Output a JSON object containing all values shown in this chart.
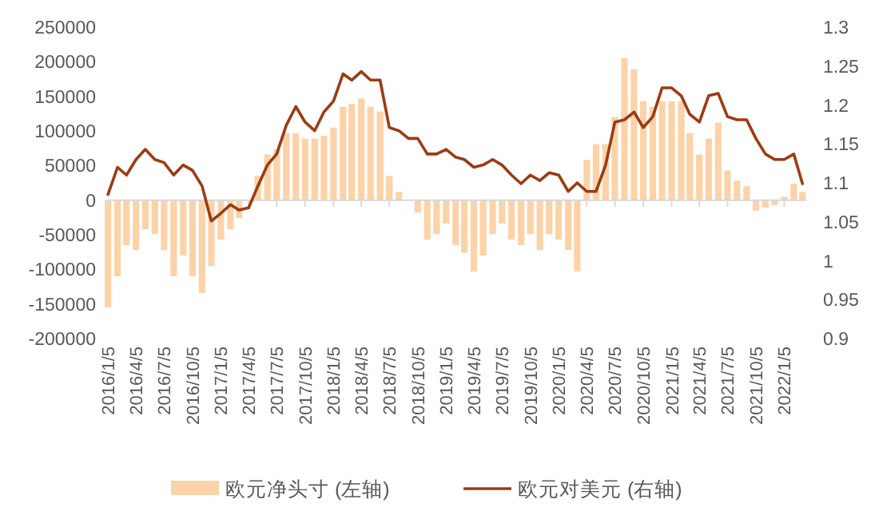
{
  "chart_data": {
    "type": "bar",
    "legend": "bottom",
    "x": [
      "2016-01-05",
      "2016-02-05",
      "2016-03-05",
      "2016-04-05",
      "2016-05-05",
      "2016-06-05",
      "2016-07-05",
      "2016-08-05",
      "2016-09-05",
      "2016-10-05",
      "2016-11-05",
      "2016-12-05",
      "2017-01-05",
      "2017-02-05",
      "2017-03-05",
      "2017-04-05",
      "2017-05-05",
      "2017-06-05",
      "2017-07-05",
      "2017-08-05",
      "2017-09-05",
      "2017-10-05",
      "2017-11-05",
      "2017-12-05",
      "2018-01-05",
      "2018-02-05",
      "2018-03-05",
      "2018-04-05",
      "2018-05-05",
      "2018-06-05",
      "2018-07-05",
      "2018-08-05",
      "2018-09-05",
      "2018-10-05",
      "2018-11-05",
      "2018-12-05",
      "2019-01-05",
      "2019-02-05",
      "2019-03-05",
      "2019-04-05",
      "2019-05-05",
      "2019-06-05",
      "2019-07-05",
      "2019-08-05",
      "2019-09-05",
      "2019-10-05",
      "2019-11-05",
      "2019-12-05",
      "2020-01-05",
      "2020-02-05",
      "2020-03-05",
      "2020-04-05",
      "2020-05-05",
      "2020-06-05",
      "2020-07-05",
      "2020-08-05",
      "2020-09-05",
      "2020-10-05",
      "2020-11-05",
      "2020-12-05",
      "2021-01-05",
      "2021-02-05",
      "2021-03-05",
      "2021-04-05",
      "2021-05-05",
      "2021-06-05",
      "2021-07-05",
      "2021-08-05",
      "2021-09-05",
      "2021-10-05",
      "2021-11-05",
      "2021-12-05",
      "2022-01-05",
      "2022-02-05",
      "2022-03-05"
    ],
    "xlim": [
      "2015-12-28",
      "2022-03-20"
    ],
    "xticks": [
      {
        "value": "2016-01-05",
        "label": "2016/1/5"
      },
      {
        "value": "2016-04-05",
        "label": "2016/4/5"
      },
      {
        "value": "2016-07-05",
        "label": "2016/7/5"
      },
      {
        "value": "2016-10-05",
        "label": "2016/10/5"
      },
      {
        "value": "2017-01-05",
        "label": "2017/1/5"
      },
      {
        "value": "2017-04-05",
        "label": "2017/4/5"
      },
      {
        "value": "2017-07-05",
        "label": "2017/7/5"
      },
      {
        "value": "2017-10-05",
        "label": "2017/10/5"
      },
      {
        "value": "2018-01-05",
        "label": "2018/1/5"
      },
      {
        "value": "2018-04-05",
        "label": "2018/4/5"
      },
      {
        "value": "2018-07-05",
        "label": "2018/7/5"
      },
      {
        "value": "2018-10-05",
        "label": "2018/10/5"
      },
      {
        "value": "2019-01-05",
        "label": "2019/1/5"
      },
      {
        "value": "2019-04-05",
        "label": "2019/4/5"
      },
      {
        "value": "2019-07-05",
        "label": "2019/7/5"
      },
      {
        "value": "2019-10-05",
        "label": "2019/10/5"
      },
      {
        "value": "2020-01-05",
        "label": "2020/1/5"
      },
      {
        "value": "2020-04-05",
        "label": "2020/4/5"
      },
      {
        "value": "2020-07-05",
        "label": "2020/7/5"
      },
      {
        "value": "2020-10-05",
        "label": "2020/10/5"
      },
      {
        "value": "2021-01-05",
        "label": "2021/1/5"
      },
      {
        "value": "2021-04-05",
        "label": "2021/4/5"
      },
      {
        "value": "2021-07-05",
        "label": "2021/7/5"
      },
      {
        "value": "2021-10-05",
        "label": "2021/10/5"
      },
      {
        "value": "2022-01-05",
        "label": "2022/1/5"
      }
    ],
    "ylim": [
      -200000,
      250000
    ],
    "yticks": [
      -200000,
      -150000,
      -100000,
      -50000,
      0,
      50000,
      100000,
      150000,
      200000,
      250000
    ],
    "y2lim": [
      0.9,
      1.3
    ],
    "y2ticks": [
      0.9,
      0.95,
      1,
      1.05,
      1.1,
      1.15,
      1.2,
      1.25,
      1.3
    ],
    "series": [
      {
        "name": "欧元净头寸 (左轴)",
        "color": "#fcd3a8",
        "values": [
          -155000,
          -110000,
          -65000,
          -72000,
          -42000,
          -49000,
          -72000,
          -110000,
          -80000,
          -110000,
          -134000,
          -95000,
          -57000,
          -42000,
          -26000,
          null,
          35000,
          66000,
          74000,
          97000,
          97000,
          89000,
          89000,
          93000,
          105000,
          135000,
          139000,
          147000,
          135000,
          128000,
          35000,
          12000,
          null,
          -18000,
          -57000,
          -49000,
          -34000,
          -65000,
          -76000,
          -103000,
          -80000,
          -49000,
          -34000,
          -57000,
          -65000,
          -49000,
          -72000,
          -49000,
          -57000,
          -72000,
          -103000,
          58000,
          81000,
          81000,
          120000,
          205000,
          189000,
          143000,
          135000,
          143000,
          143000,
          143000,
          97000,
          66000,
          89000,
          112000,
          43000,
          28000,
          20000,
          -15000,
          -11000,
          -7000,
          5000,
          24000,
          12000
        ]
      },
      {
        "name": "欧元对美元 (右轴)",
        "type": "line",
        "axis": "y2",
        "color": "#9c3b12",
        "values": [
          1.085,
          1.12,
          1.11,
          1.13,
          1.143,
          1.13,
          1.126,
          1.11,
          1.123,
          1.116,
          1.096,
          1.051,
          1.061,
          1.072,
          1.065,
          1.068,
          1.096,
          1.123,
          1.137,
          1.174,
          1.198,
          1.178,
          1.167,
          1.191,
          1.205,
          1.24,
          1.232,
          1.243,
          1.232,
          1.232,
          1.171,
          1.167,
          1.157,
          1.157,
          1.137,
          1.137,
          1.143,
          1.133,
          1.13,
          1.12,
          1.123,
          1.13,
          1.123,
          1.11,
          1.099,
          1.11,
          1.103,
          1.113,
          1.11,
          1.089,
          1.1,
          1.089,
          1.089,
          1.123,
          1.178,
          1.181,
          1.191,
          1.171,
          1.185,
          1.222,
          1.222,
          1.212,
          1.188,
          1.178,
          1.212,
          1.215,
          1.185,
          1.181,
          1.181,
          1.157,
          1.137,
          1.13,
          1.13,
          1.137,
          1.099
        ]
      }
    ]
  }
}
